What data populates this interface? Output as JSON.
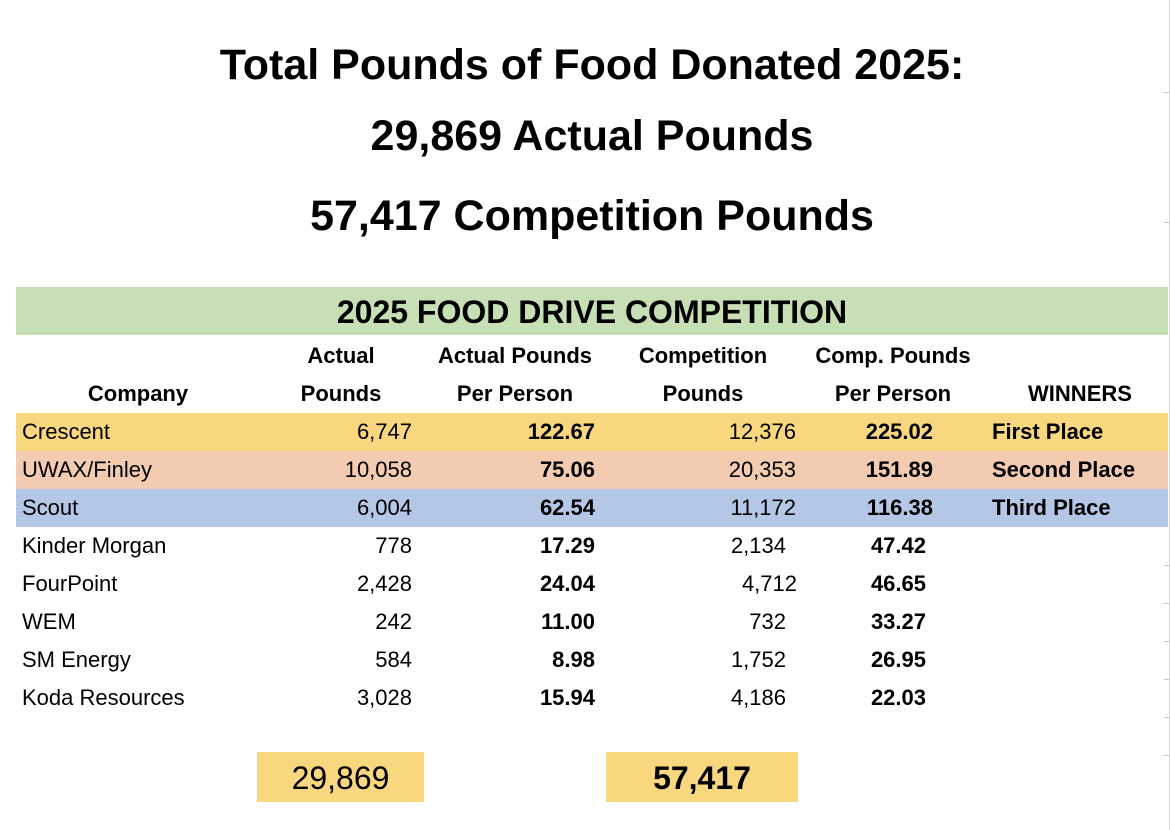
{
  "headline": {
    "line1": "Total Pounds of Food Donated 2025:",
    "line2": "29,869 Actual Pounds",
    "line3": "57,417 Competition Pounds"
  },
  "table": {
    "title": "2025 FOOD DRIVE COMPETITION",
    "headers": {
      "company": "Company",
      "actual_top": "Actual",
      "actual_bottom": "Pounds",
      "actual_pp_top": "Actual Pounds",
      "actual_pp_bottom": "Per Person",
      "comp_top": "Competition",
      "comp_bottom": "Pounds",
      "comp_pp_top": "Comp. Pounds",
      "comp_pp_bottom": "Per Person",
      "winners": "WINNERS"
    },
    "rows": [
      {
        "company": "Crescent",
        "actual": "6,747",
        "actual_pp": "122.67",
        "comp": "12,376",
        "comp_pp": "225.02",
        "winner": "First Place"
      },
      {
        "company": "UWAX/Finley",
        "actual": "10,058",
        "actual_pp": "75.06",
        "comp": "20,353",
        "comp_pp": "151.89",
        "winner": "Second Place"
      },
      {
        "company": "Scout",
        "actual": "6,004",
        "actual_pp": "62.54",
        "comp": "11,172",
        "comp_pp": "116.38",
        "winner": "Third Place"
      },
      {
        "company": "Kinder Morgan",
        "actual": "778",
        "actual_pp": "17.29",
        "comp": "2,134",
        "comp_pp": "47.42",
        "winner": ""
      },
      {
        "company": "FourPoint",
        "actual": "2,428",
        "actual_pp": "24.04",
        "comp": "4,712",
        "comp_pp": "46.65",
        "winner": ""
      },
      {
        "company": "WEM",
        "actual": "242",
        "actual_pp": "11.00",
        "comp": "732",
        "comp_pp": "33.27",
        "winner": ""
      },
      {
        "company": "SM Energy",
        "actual": "584",
        "actual_pp": "8.98",
        "comp": "1,752",
        "comp_pp": "26.95",
        "winner": ""
      },
      {
        "company": "Koda Resources",
        "actual": "3,028",
        "actual_pp": "15.94",
        "comp": "4,186",
        "comp_pp": "22.03",
        "winner": ""
      }
    ],
    "totals": {
      "actual": "29,869",
      "comp": "57,417"
    }
  },
  "colors": {
    "title_band": "#c6dfb5",
    "first_place": "#f9d77e",
    "second_place": "#f2cbb0",
    "third_place": "#b4c7e7",
    "totals": "#f9d77e"
  }
}
